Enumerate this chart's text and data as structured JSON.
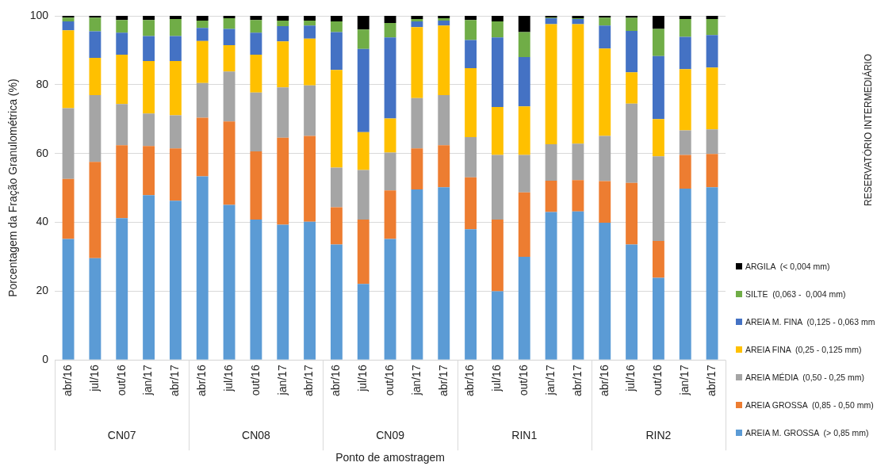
{
  "chart_data": {
    "type": "bar",
    "stacked": true,
    "xlabel": "Ponto de amostragem",
    "ylabel": "Porcentagem da Fração Granulométrica (%)",
    "legend_title": "RESERVATÓRIO INTERMEDIÁRIO",
    "annotations": [
      "CN07",
      "CN08",
      "CN09",
      "RIN1",
      "RIN2"
    ],
    "categories": [
      "abr/16",
      "jul/16",
      "out/16",
      "jan/17",
      "abr/17",
      "abr/16",
      "jul/16",
      "out/16",
      "jan/17",
      "abr/17",
      "abr/16",
      "jul/16",
      "out/16",
      "jan/17",
      "abr/17",
      "abr/16",
      "jul/16",
      "out/16",
      "jan/17",
      "abr/17",
      "abr/16",
      "jul/16",
      "out/16",
      "jan/17",
      "abr/17"
    ],
    "ylim": [
      0,
      100
    ],
    "yticks": [
      0,
      20,
      40,
      60,
      80,
      100
    ],
    "grid": "y",
    "legend": "right",
    "series": [
      {
        "name": "AREIA M. GROSSA  (> 0,85 mm)",
        "color": "#5b9bd5",
        "values": [
          35.2,
          29.6,
          41.2,
          47.9,
          46.3,
          53.4,
          45.1,
          40.8,
          39.3,
          40.2,
          33.6,
          22.1,
          35.2,
          49.6,
          50.2,
          38.0,
          20.0,
          30.0,
          43.0,
          43.2,
          39.9,
          33.6,
          23.9,
          49.8,
          50.2
        ]
      },
      {
        "name": "AREIA GROSSA  (0,85 - 0,50 mm)",
        "color": "#ed7d31",
        "values": [
          17.4,
          28.0,
          21.2,
          14.3,
          15.2,
          17.0,
          24.2,
          19.8,
          25.3,
          24.9,
          10.8,
          18.7,
          14.1,
          11.9,
          12.2,
          15.1,
          20.8,
          18.7,
          9.1,
          9.1,
          12.1,
          17.9,
          10.7,
          9.8,
          9.7
        ]
      },
      {
        "name": "AREIA MÉDIA  (0,50 - 0,25 mm)",
        "color": "#a5a5a5",
        "values": [
          20.6,
          19.4,
          12.0,
          9.4,
          9.6,
          10.1,
          14.5,
          17.1,
          14.6,
          14.7,
          11.5,
          14.4,
          11.0,
          14.6,
          14.6,
          11.7,
          18.8,
          10.9,
          10.6,
          10.6,
          13.1,
          23.0,
          24.6,
          7.1,
          7.1
        ]
      },
      {
        "name": "AREIA FINA  (0,25 - 0,125 mm)",
        "color": "#ffc000",
        "values": [
          22.6,
          10.8,
          14.3,
          15.3,
          15.8,
          12.2,
          7.7,
          11.0,
          13.4,
          13.6,
          28.4,
          11.0,
          9.9,
          20.6,
          20.2,
          20.0,
          13.9,
          14.1,
          34.9,
          34.7,
          25.4,
          9.1,
          10.8,
          17.8,
          18.0
        ]
      },
      {
        "name": "AREIA M. FINA  (0,125 - 0,063 mm",
        "color": "#4472c4",
        "values": [
          2.6,
          7.7,
          6.4,
          7.2,
          7.2,
          3.8,
          4.7,
          6.4,
          4.4,
          3.8,
          11.0,
          24.2,
          23.5,
          1.7,
          1.4,
          8.2,
          20.2,
          14.3,
          1.7,
          1.5,
          6.7,
          12.0,
          18.3,
          9.4,
          9.4
        ]
      },
      {
        "name": "SILTE  (0,063 -  0,004 mm)",
        "color": "#70ad47",
        "values": [
          1.1,
          4.0,
          3.7,
          4.7,
          5.0,
          2.1,
          3.1,
          3.7,
          1.6,
          1.4,
          3.1,
          5.6,
          4.2,
          0.7,
          0.7,
          5.8,
          4.7,
          7.3,
          0.2,
          0.2,
          2.3,
          3.8,
          7.9,
          5.2,
          4.7
        ]
      },
      {
        "name": "ARGILA  (< 0,004 mm)",
        "color": "#000000",
        "values": [
          0.5,
          0.5,
          1.2,
          1.2,
          0.9,
          1.4,
          0.7,
          1.2,
          1.4,
          1.4,
          1.6,
          4.0,
          2.1,
          0.9,
          0.7,
          1.2,
          1.6,
          4.7,
          0.5,
          0.7,
          0.5,
          0.6,
          3.8,
          0.9,
          0.9
        ]
      }
    ]
  }
}
